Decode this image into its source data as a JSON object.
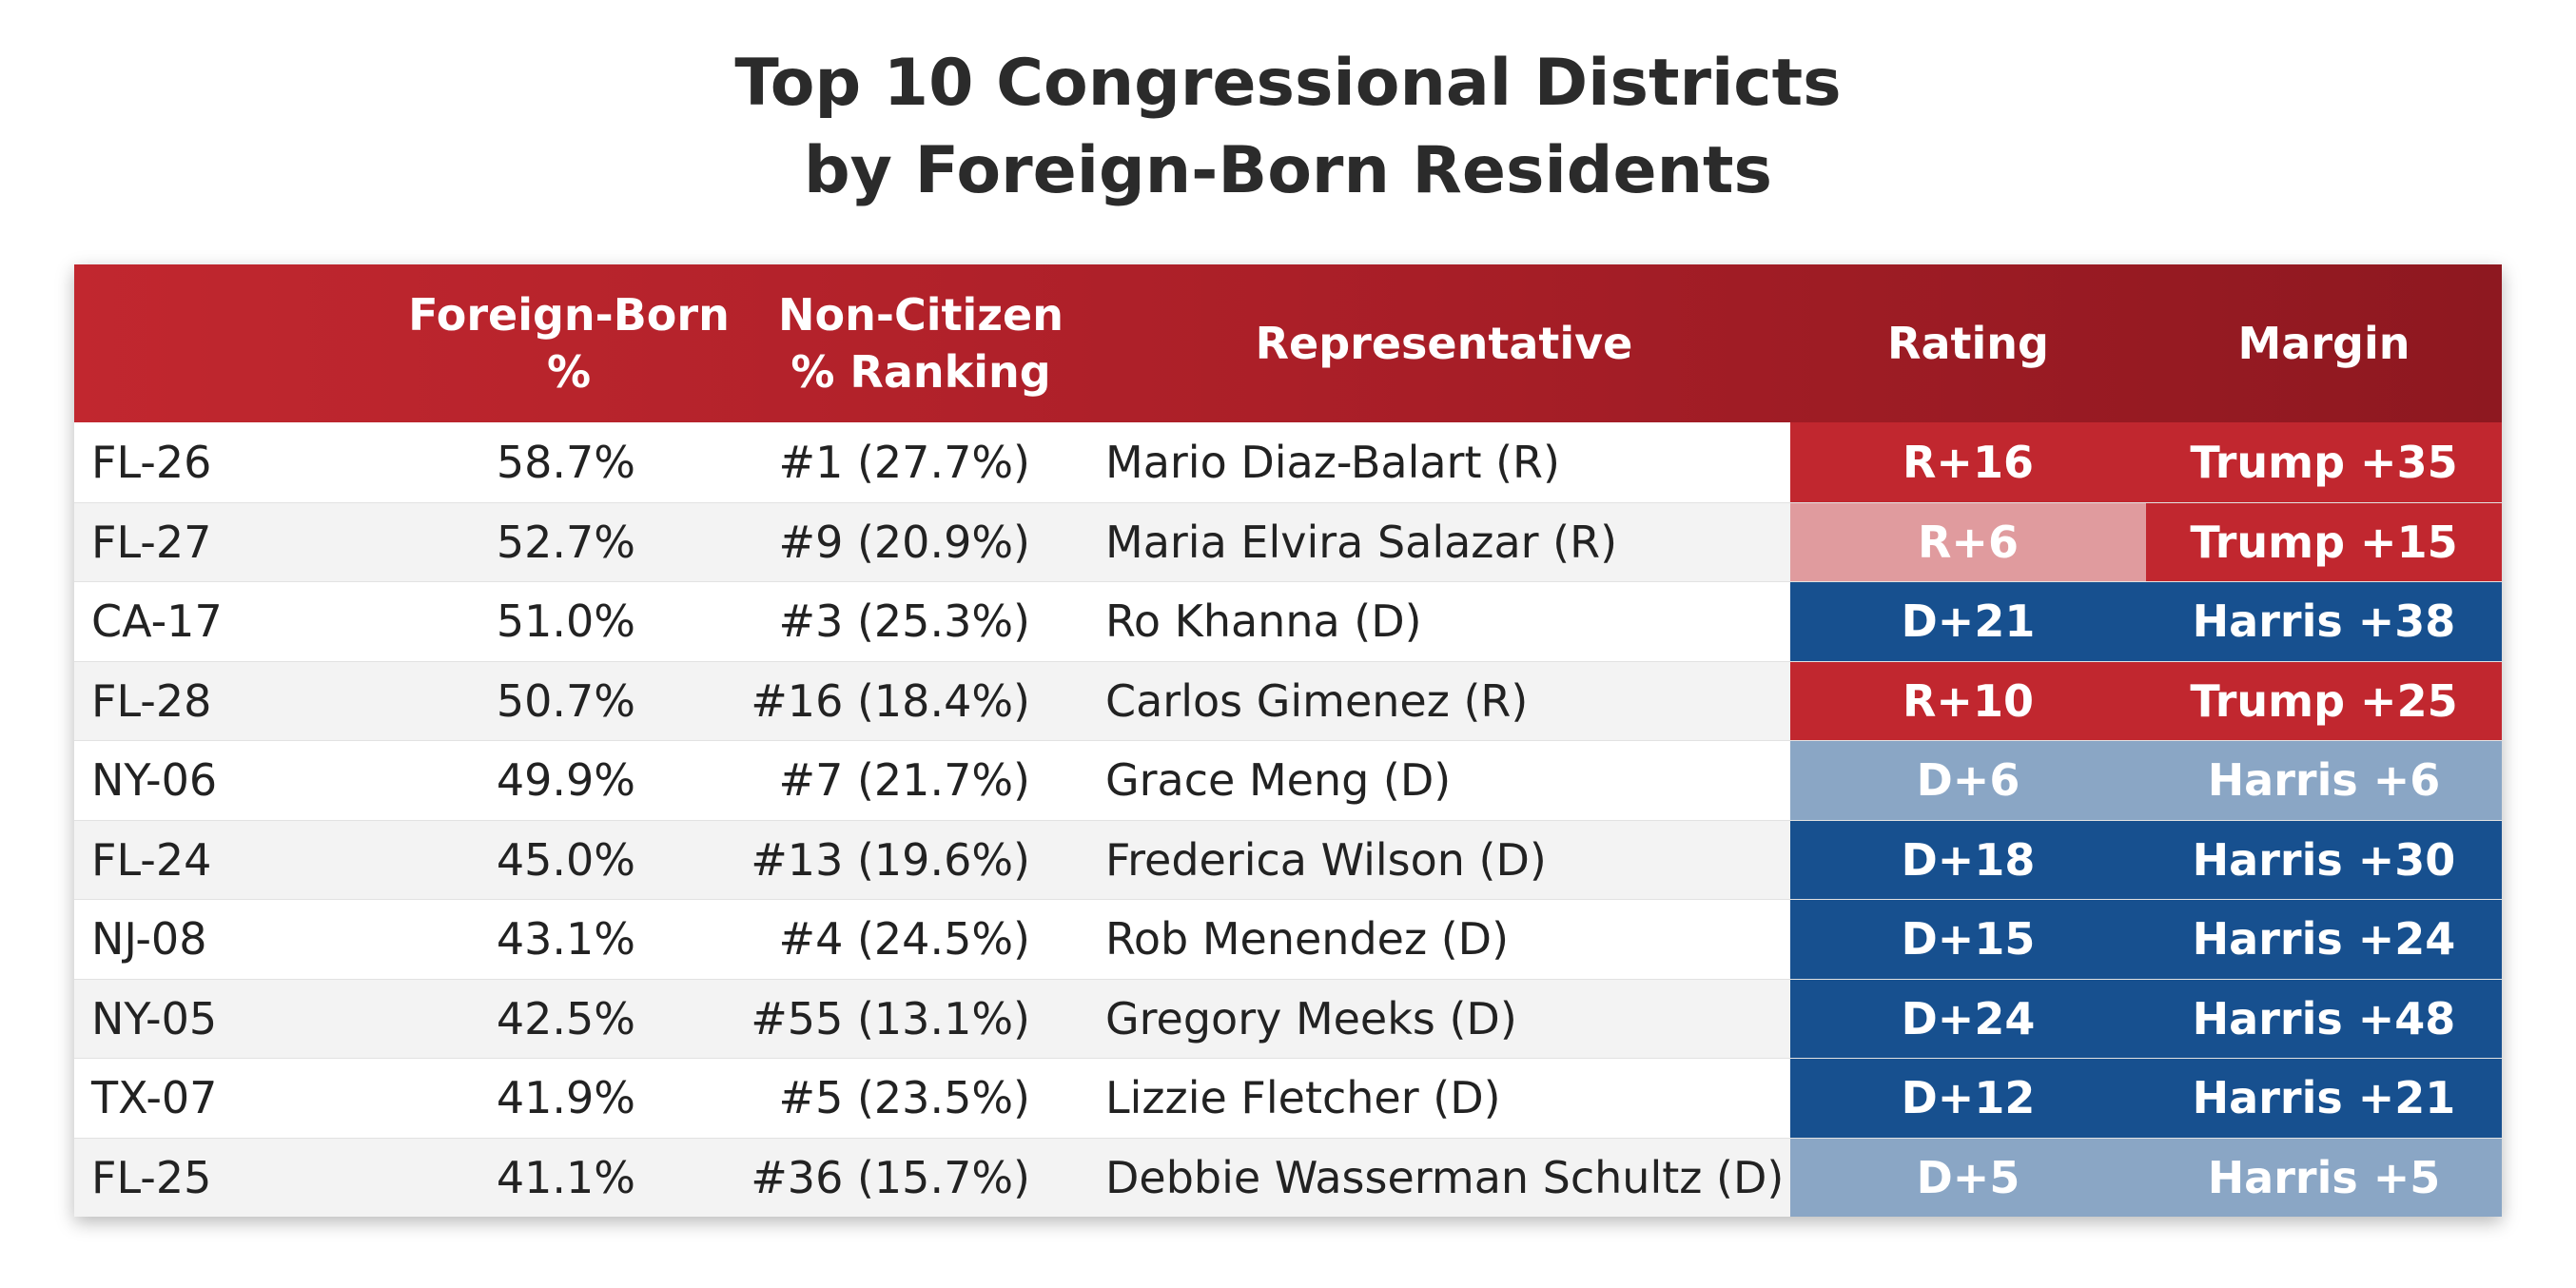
{
  "chart_data": {
    "type": "table",
    "title": [
      "Top 10 Congressional Districts",
      "by Foreign-Born Residents"
    ],
    "columns": [
      {
        "key": "district",
        "label": []
      },
      {
        "key": "foreign_born",
        "label": [
          "Foreign-Born",
          "%"
        ]
      },
      {
        "key": "non_citizen",
        "label": [
          "Non-Citizen",
          "% Ranking"
        ]
      },
      {
        "key": "representative",
        "label": [
          "Representative"
        ]
      },
      {
        "key": "rating",
        "label": [
          "Rating"
        ]
      },
      {
        "key": "margin",
        "label": [
          "Margin"
        ]
      }
    ],
    "colors": {
      "header": "#b0212a",
      "solid_red": "#c1272f",
      "light_red": "#e09b9e",
      "solid_blue": "#17508f",
      "light_blue": "#8aa6c5"
    },
    "rows": [
      {
        "district": "FL-26",
        "foreign_born": "58.7%",
        "non_citizen": "#1 (27.7%)",
        "representative": "Mario Diaz-Balart (R)",
        "rating": "R+16",
        "margin": "Trump +35",
        "rating_color": "#c1272f",
        "margin_color": "#c1272f"
      },
      {
        "district": "FL-27",
        "foreign_born": "52.7%",
        "non_citizen": "#9 (20.9%)",
        "representative": "Maria Elvira Salazar (R)",
        "rating": "R+6",
        "margin": "Trump +15",
        "rating_color": "#e09b9e",
        "margin_color": "#c1272f"
      },
      {
        "district": "CA-17",
        "foreign_born": "51.0%",
        "non_citizen": "#3 (25.3%)",
        "representative": "Ro Khanna (D)",
        "rating": "D+21",
        "margin": "Harris +38",
        "rating_color": "#17508f",
        "margin_color": "#17508f"
      },
      {
        "district": "FL-28",
        "foreign_born": "50.7%",
        "non_citizen": "#16 (18.4%)",
        "representative": "Carlos Gimenez (R)",
        "rating": "R+10",
        "margin": "Trump +25",
        "rating_color": "#c1272f",
        "margin_color": "#c1272f"
      },
      {
        "district": "NY-06",
        "foreign_born": "49.9%",
        "non_citizen": "#7 (21.7%)",
        "representative": "Grace Meng (D)",
        "rating": "D+6",
        "margin": "Harris +6",
        "rating_color": "#8aa6c5",
        "margin_color": "#8aa6c5"
      },
      {
        "district": "FL-24",
        "foreign_born": "45.0%",
        "non_citizen": "#13 (19.6%)",
        "representative": "Frederica Wilson (D)",
        "rating": "D+18",
        "margin": "Harris +30",
        "rating_color": "#17508f",
        "margin_color": "#17508f"
      },
      {
        "district": "NJ-08",
        "foreign_born": "43.1%",
        "non_citizen": "#4 (24.5%)",
        "representative": "Rob Menendez (D)",
        "rating": "D+15",
        "margin": "Harris +24",
        "rating_color": "#17508f",
        "margin_color": "#17508f"
      },
      {
        "district": "NY-05",
        "foreign_born": "42.5%",
        "non_citizen": "#55 (13.1%)",
        "representative": "Gregory Meeks (D)",
        "rating": "D+24",
        "margin": "Harris +48",
        "rating_color": "#17508f",
        "margin_color": "#17508f"
      },
      {
        "district": "TX-07",
        "foreign_born": "41.9%",
        "non_citizen": "#5 (23.5%)",
        "representative": "Lizzie Fletcher (D)",
        "rating": "D+12",
        "margin": "Harris +21",
        "rating_color": "#17508f",
        "margin_color": "#17508f"
      },
      {
        "district": "FL-25",
        "foreign_born": "41.1%",
        "non_citizen": "#36 (15.7%)",
        "representative": "Debbie Wasserman Schultz (D)",
        "rating": "D+5",
        "margin": "Harris +5",
        "rating_color": "#8aa6c5",
        "margin_color": "#8aa6c5"
      }
    ]
  }
}
